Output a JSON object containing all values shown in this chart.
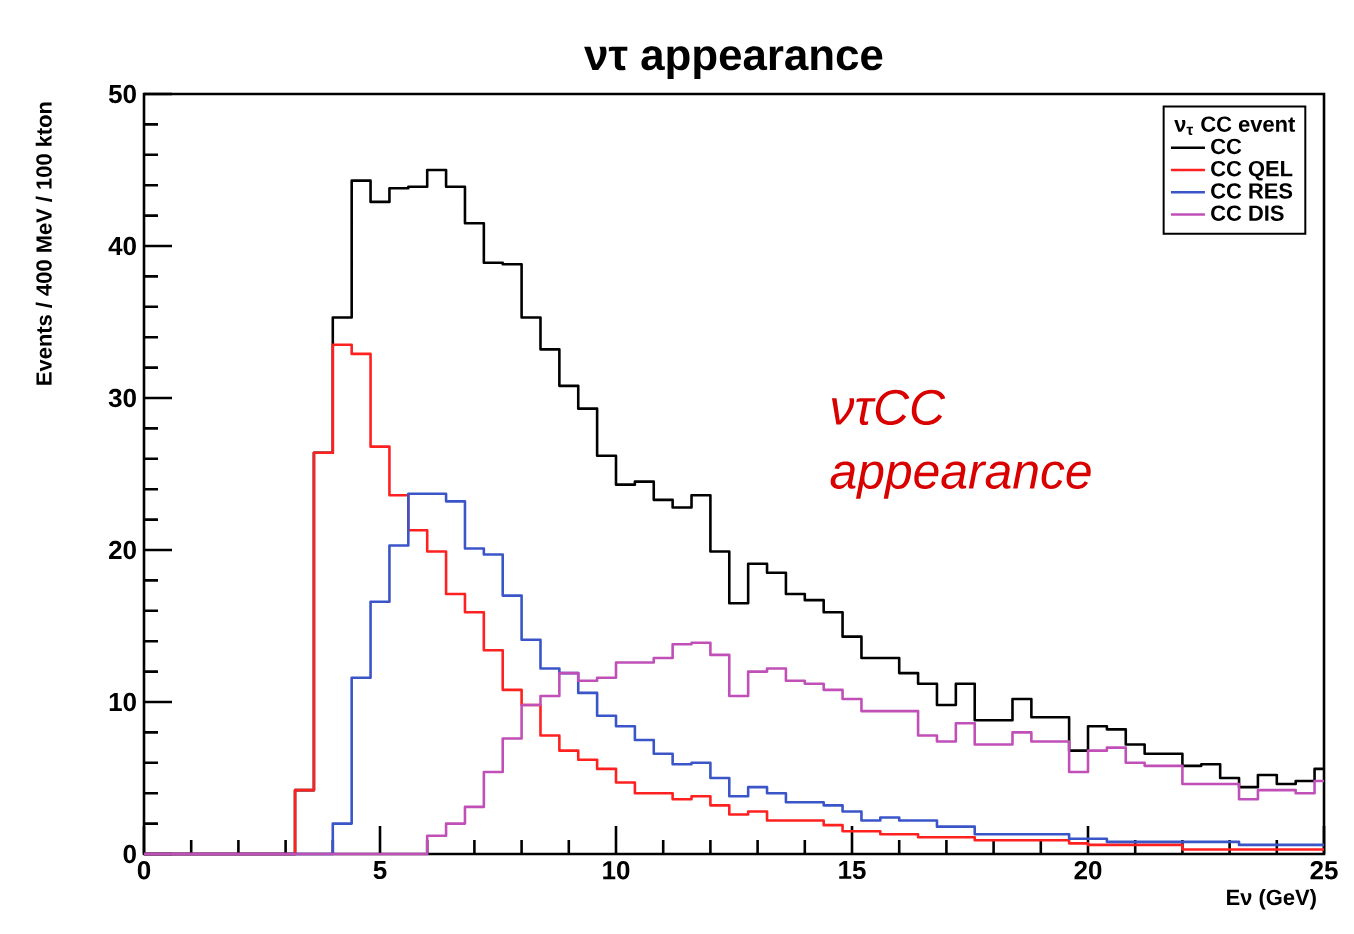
{
  "chart_data": {
    "type": "histogram",
    "title": "ντ appearance",
    "xlabel": "Eν (GeV)",
    "ylabel": "Events / 400 MeV / 100 kton",
    "legend_title": "ν$_{τ}$ CC event",
    "annotations": [
      "*ντCC* *appearance*"
    ],
    "bins": [
      0,
      0.4,
      0.8,
      1.2,
      1.6,
      2.0,
      2.4,
      2.8,
      3.2,
      3.6,
      4.0,
      4.4,
      4.8,
      5.2,
      5.6,
      6.0,
      6.4,
      6.8,
      7.2,
      7.6,
      8.0,
      8.4,
      8.8,
      9.2,
      9.6,
      10.0,
      10.4,
      10.8,
      11.2,
      11.6,
      12.0,
      12.4,
      12.8,
      13.2,
      13.6,
      14.0,
      14.4,
      14.8,
      15.2,
      15.6,
      16.0,
      16.4,
      16.8,
      17.2,
      17.6,
      18.0,
      18.4,
      18.8,
      19.2,
      19.6,
      20.0,
      20.4,
      20.8,
      21.2,
      21.6,
      22.0,
      22.4,
      22.8,
      23.2,
      23.6,
      24.0,
      24.4,
      24.8,
      25
    ],
    "series": [
      {
        "name": "CC",
        "color": "#000000",
        "values": [
          0,
          0,
          0,
          0,
          0,
          0,
          0,
          0,
          4.2,
          26.4,
          35.3,
          44.3,
          42.9,
          43.8,
          43.9,
          45.0,
          43.9,
          41.5,
          38.9,
          38.8,
          35.3,
          33.2,
          30.8,
          29.3,
          26.2,
          24.3,
          24.5,
          23.3,
          22.8,
          23.6,
          19.9,
          16.5,
          19.1,
          18.5,
          17.1,
          16.7,
          15.9,
          14.3,
          12.9,
          12.9,
          11.9,
          11.2,
          9.8,
          11.2,
          8.8,
          8.8,
          10.2,
          9.0,
          9.0,
          6.8,
          8.4,
          8.2,
          7.2,
          6.6,
          6.6,
          5.8,
          5.9,
          5.0,
          4.4,
          5.2,
          4.6,
          4.8,
          5.6
        ]
      },
      {
        "name": "CC QEL",
        "color": "#ff2020",
        "values": [
          0,
          0,
          0,
          0,
          0,
          0,
          0,
          0,
          4.2,
          26.4,
          33.5,
          32.9,
          26.8,
          23.6,
          21.3,
          19.9,
          17.1,
          15.9,
          13.4,
          10.8,
          9.8,
          7.8,
          6.8,
          6.2,
          5.6,
          4.7,
          4.0,
          4.0,
          3.6,
          3.8,
          3.2,
          2.6,
          2.8,
          2.2,
          2.2,
          2.2,
          1.9,
          1.5,
          1.5,
          1.3,
          1.3,
          1.1,
          1.1,
          1.1,
          0.9,
          0.9,
          0.9,
          0.9,
          0.9,
          0.7,
          0.6,
          0.6,
          0.6,
          0.6,
          0.6,
          0.3,
          0.3,
          0.3,
          0.3,
          0.3,
          0.3,
          0.3,
          0.3
        ]
      },
      {
        "name": "CC RES",
        "color": "#3a55c8",
        "values": [
          0,
          0,
          0,
          0,
          0,
          0,
          0,
          0,
          0,
          0,
          2.0,
          11.6,
          16.6,
          20.3,
          23.7,
          23.7,
          23.2,
          20.1,
          19.7,
          17.0,
          14.1,
          12.2,
          11.9,
          10.6,
          9.1,
          8.4,
          7.5,
          6.6,
          5.9,
          6.0,
          5.0,
          3.8,
          4.4,
          4.0,
          3.4,
          3.4,
          3.2,
          2.8,
          2.2,
          2.4,
          2.2,
          2.2,
          1.8,
          1.8,
          1.3,
          1.3,
          1.3,
          1.3,
          1.3,
          1.0,
          1.0,
          0.8,
          0.8,
          0.8,
          0.8,
          0.8,
          0.8,
          0.8,
          0.6,
          0.6,
          0.6,
          0.6,
          0.6
        ]
      },
      {
        "name": "CC DIS",
        "color": "#c050b8",
        "values": [
          0,
          0,
          0,
          0,
          0,
          0,
          0,
          0,
          0,
          0,
          0,
          0,
          0,
          0,
          0,
          1.2,
          2.0,
          3.1,
          5.4,
          7.6,
          9.8,
          10.4,
          11.9,
          11.4,
          11.6,
          12.6,
          12.6,
          12.9,
          13.8,
          13.9,
          13.1,
          10.4,
          12.0,
          12.2,
          11.4,
          11.2,
          10.8,
          10.2,
          9.4,
          9.4,
          9.4,
          7.8,
          7.4,
          8.6,
          7.2,
          7.2,
          8.0,
          7.4,
          7.4,
          5.4,
          6.8,
          7.0,
          6.0,
          5.8,
          5.8,
          4.6,
          4.6,
          4.6,
          3.6,
          4.2,
          4.2,
          4.0,
          4.8
        ]
      }
    ],
    "xlim": [
      0,
      25
    ],
    "ylim": [
      0,
      50
    ],
    "xticks": [
      0,
      5,
      10,
      15,
      20,
      25
    ],
    "yticks": [
      0,
      10,
      20,
      30,
      40,
      50
    ],
    "legend": "top right",
    "grid": false
  }
}
